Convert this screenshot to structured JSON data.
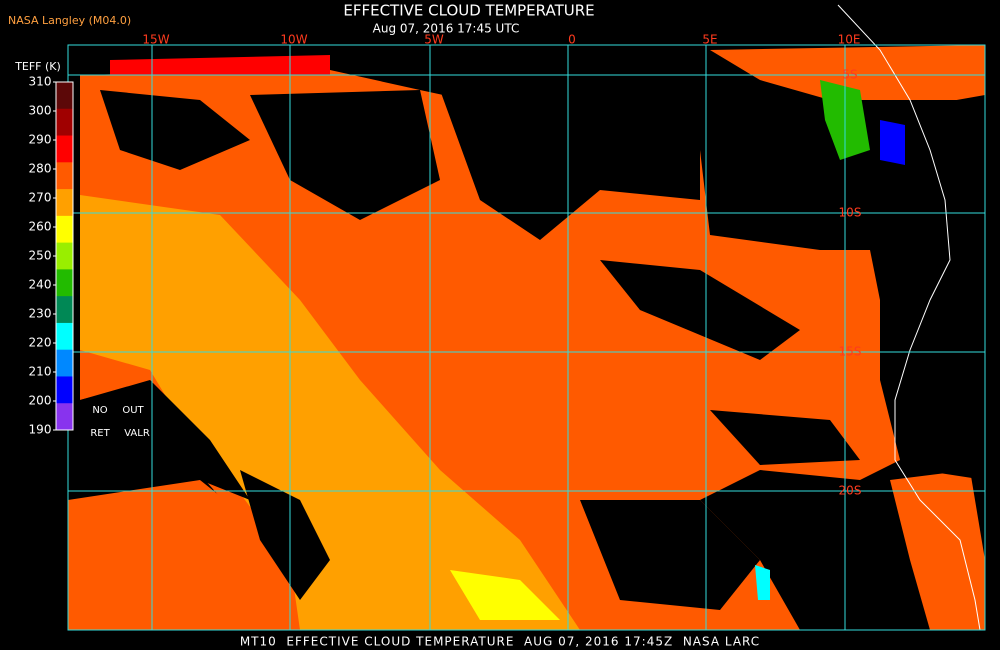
{
  "header": {
    "credit": "NASA Langley (M04.0)",
    "title": "EFFECTIVE CLOUD TEMPERATURE",
    "subtitle": "Aug 07, 2016 17:45 UTC"
  },
  "colorbar": {
    "label": "TEFF (K)",
    "ticks": [
      310,
      300,
      290,
      280,
      270,
      260,
      250,
      240,
      230,
      220,
      210,
      200,
      190
    ],
    "colors": [
      "#5c0808",
      "#a00000",
      "#ff0000",
      "#ff5a00",
      "#ffa000",
      "#ffff00",
      "#99ee00",
      "#22bb00",
      "#008855",
      "#00ffff",
      "#0088ff",
      "#0000ff",
      "#8833ee"
    ],
    "no_retrieval": [
      "NO",
      "RET"
    ],
    "out_of_range": [
      "OUT",
      "VALR"
    ]
  },
  "map": {
    "longitudes": [
      "15W",
      "10W",
      "5W",
      "0",
      "5E",
      "10E"
    ],
    "latitudes": [
      "5S",
      "10S",
      "15S",
      "20S"
    ]
  },
  "footer": "MT10  EFFECTIVE CLOUD TEMPERATURE  AUG 07, 2016 17:45Z  NASA LARC"
}
